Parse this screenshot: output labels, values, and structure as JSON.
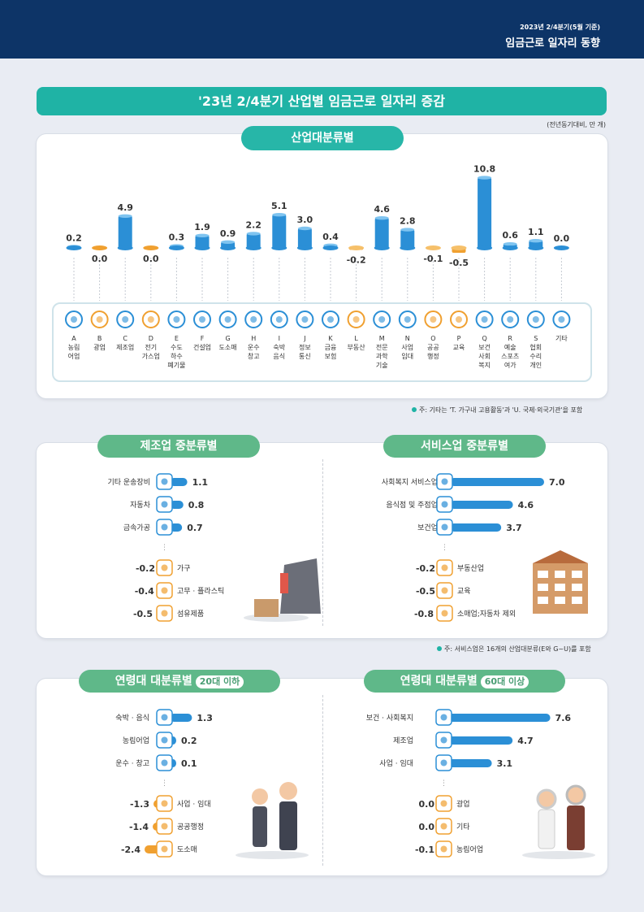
{
  "header": {
    "period": "2023년 2/4분기(5월 기준)",
    "report_title": "임금근로 일자리 동향"
  },
  "page_title": "'23년 2/4분기 산업별 임금근로 일자리 증감",
  "unit_note": "(전년동기대비, 만 개)",
  "industry_section": {
    "pill": "산업대분류별",
    "footnote": "주: 기타는 'T. 가구내 고용활동'과 'U. 국제·외국기관'을 포함"
  },
  "manufacturing_section": {
    "pill": "제조업 중분류별"
  },
  "service_section": {
    "pill": "서비스업 중분류별",
    "footnote": "주: 서비스업은 16개의 산업대분류(E와 G~U)를 포함"
  },
  "age_young_section": {
    "pill": "연령대 대분류별",
    "tag": "20대 이하"
  },
  "age_old_section": {
    "pill": "연령대 대분류별",
    "tag": "60대 이상"
  },
  "colors": {
    "bar_blue": "#2b8fd6",
    "bar_orange": "#f0a030",
    "teal": "#1fb3a5",
    "navy": "#0d3467",
    "green": "#5fb889"
  },
  "chart_data": [
    {
      "type": "bar",
      "title": "산업대분류별",
      "categories": [
        {
          "code": "A",
          "name": "농림\n어업",
          "icon": "wheat-icon"
        },
        {
          "code": "B",
          "name": "광업",
          "icon": "helmet-icon"
        },
        {
          "code": "C",
          "name": "제조업",
          "icon": "gear-icon"
        },
        {
          "code": "D",
          "name": "전기\n가스업",
          "icon": "lightning-icon"
        },
        {
          "code": "E",
          "name": "수도\n하수\n폐기물",
          "icon": "faucet-icon"
        },
        {
          "code": "F",
          "name": "건설업",
          "icon": "building-icon"
        },
        {
          "code": "G",
          "name": "도소매",
          "icon": "basket-icon"
        },
        {
          "code": "H",
          "name": "운수\n창고",
          "icon": "truck-icon"
        },
        {
          "code": "I",
          "name": "숙박\n음식",
          "icon": "plate-icon"
        },
        {
          "code": "J",
          "name": "정보\n통신",
          "icon": "phone-icon"
        },
        {
          "code": "K",
          "name": "금융\n보험",
          "icon": "monitor-icon"
        },
        {
          "code": "L",
          "name": "부동산",
          "icon": "house-icon"
        },
        {
          "code": "M",
          "name": "전문\n과학\n기술",
          "icon": "flask-icon"
        },
        {
          "code": "N",
          "name": "사업\n임대",
          "icon": "people-icon"
        },
        {
          "code": "O",
          "name": "공공\n행정",
          "icon": "document-icon"
        },
        {
          "code": "P",
          "name": "교육",
          "icon": "graduation-cap-icon"
        },
        {
          "code": "Q",
          "name": "보건\n사회\n복지",
          "icon": "medical-kit-icon"
        },
        {
          "code": "R",
          "name": "예술\n스포츠\n여가",
          "icon": "ball-icon"
        },
        {
          "code": "S",
          "name": "협회\n수리\n개인",
          "icon": "group-icon"
        },
        {
          "code": "",
          "name": "기타",
          "icon": "misc-doc-icon"
        }
      ],
      "values": [
        0.2,
        0.0,
        4.9,
        0.0,
        0.3,
        1.9,
        0.9,
        2.2,
        5.1,
        3.0,
        0.4,
        -0.2,
        4.6,
        2.8,
        -0.1,
        -0.5,
        10.8,
        0.6,
        1.1,
        0.0
      ],
      "value_labels": [
        "0.2",
        "0.0",
        "4.9",
        "0.0",
        "0.3",
        "1.9",
        "0.9",
        "2.2",
        "5.1",
        "3.0",
        "0.4",
        "-0.2",
        "4.6",
        "2.8",
        "-0.1",
        "-0.5",
        "10.8",
        "0.6",
        "1.1",
        "0.0"
      ]
    },
    {
      "type": "bar",
      "title": "제조업 중분류별",
      "top": [
        {
          "label": "기타 운송장비",
          "value": 1.1,
          "icon": "ship-wheel-icon"
        },
        {
          "label": "자동차",
          "value": 0.8,
          "icon": "car-icon"
        },
        {
          "label": "금속가공",
          "value": 0.7,
          "icon": "metal-gear-icon"
        }
      ],
      "bottom": [
        {
          "label": "가구",
          "value": -0.2,
          "icon": "cabinet-icon"
        },
        {
          "label": "고무 · 플라스틱",
          "value": -0.4,
          "icon": "tire-icon"
        },
        {
          "label": "섬유제품",
          "value": -0.5,
          "icon": "textile-icon"
        }
      ]
    },
    {
      "type": "bar",
      "title": "서비스업 중분류별",
      "top": [
        {
          "label": "사회복지 서비스업",
          "value": 7.0,
          "icon": "care-hands-icon"
        },
        {
          "label": "음식점 및 주점업",
          "value": 4.6,
          "icon": "bowl-icon"
        },
        {
          "label": "보건업",
          "value": 3.7,
          "icon": "cross-icon"
        }
      ],
      "bottom": [
        {
          "label": "부동산업",
          "value": -0.2,
          "icon": "house-icon"
        },
        {
          "label": "교육",
          "value": -0.5,
          "icon": "graduation-cap-icon"
        },
        {
          "label": "소매업;자동차 제외",
          "value": -0.8,
          "icon": "store-icon"
        }
      ]
    },
    {
      "type": "bar",
      "title": "연령대 대분류별 20대 이하",
      "top": [
        {
          "label": "숙박 · 음식",
          "value": 1.3,
          "icon": "plate-icon"
        },
        {
          "label": "농림어업",
          "value": 0.2,
          "icon": "wheat-icon"
        },
        {
          "label": "운수 · 창고",
          "value": 0.1,
          "icon": "truck-icon"
        }
      ],
      "bottom": [
        {
          "label": "사업 · 임대",
          "value": -1.3,
          "icon": "people-icon"
        },
        {
          "label": "공공행정",
          "value": -1.4,
          "icon": "document-icon"
        },
        {
          "label": "도소매",
          "value": -2.4,
          "icon": "basket-icon"
        }
      ]
    },
    {
      "type": "bar",
      "title": "연령대 대분류별 60대 이상",
      "top": [
        {
          "label": "보건 · 사회복지",
          "value": 7.6,
          "icon": "medical-kit-icon"
        },
        {
          "label": "제조업",
          "value": 4.7,
          "icon": "gear-icon"
        },
        {
          "label": "사업 · 임대",
          "value": 3.1,
          "icon": "people-icon"
        }
      ],
      "bottom": [
        {
          "label": "광업",
          "value": 0.0,
          "icon": "helmet-icon"
        },
        {
          "label": "기타",
          "value": 0.0,
          "icon": "misc-doc-icon"
        },
        {
          "label": "농림어업",
          "value": -0.1,
          "icon": "wheat-icon"
        }
      ]
    }
  ]
}
